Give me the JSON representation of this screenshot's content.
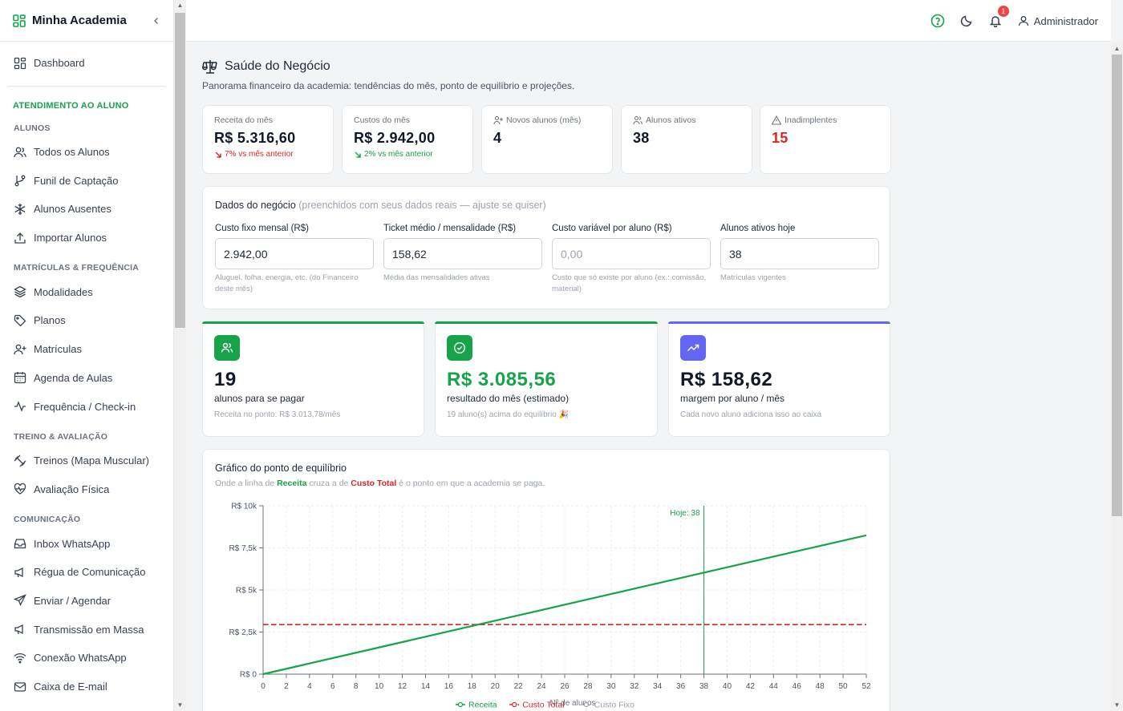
{
  "sidebar": {
    "brand": "Minha Academia",
    "dashboard": "Dashboard",
    "group": "ATENDIMENTO AO ALUNO",
    "sections": [
      {
        "title": "ALUNOS",
        "items": [
          "Todos os Alunos",
          "Funil de Captação",
          "Alunos Ausentes",
          "Importar Alunos"
        ]
      },
      {
        "title": "MATRÍCULAS & FREQUÊNCIA",
        "items": [
          "Modalidades",
          "Planos",
          "Matrículas",
          "Agenda de Aulas",
          "Frequência / Check-in"
        ]
      },
      {
        "title": "TREINO & AVALIAÇÃO",
        "items": [
          "Treinos (Mapa Muscular)",
          "Avaliação Física"
        ]
      },
      {
        "title": "COMUNICAÇÃO",
        "items": [
          "Inbox WhatsApp",
          "Régua de Comunicação",
          "Enviar / Agendar",
          "Transmissão em Massa",
          "Conexão WhatsApp",
          "Caixa de E-mail"
        ]
      }
    ]
  },
  "header": {
    "notifications": "1",
    "user": "Administrador"
  },
  "page": {
    "title": "Saúde do Negócio",
    "subtitle": "Panorama financeiro da academia: tendências do mês, ponto de equilíbrio e projeções."
  },
  "kpis": [
    {
      "label": "Receita do mês",
      "value": "R$ 5.316,60",
      "delta": "7% vs mês anterior"
    },
    {
      "label": "Custos do mês",
      "value": "R$ 2.942,00",
      "delta": "2% vs mês anterior"
    },
    {
      "label": "Novos alunos (mês)",
      "value": "4"
    },
    {
      "label": "Alunos ativos",
      "value": "38"
    },
    {
      "label": "Inadimplentes",
      "value": "15"
    }
  ],
  "business": {
    "title": "Dados do negócio",
    "title_note": "(preenchidos com seus dados reais — ajuste se quiser)",
    "fields": [
      {
        "label": "Custo fixo mensal (R$)",
        "value": "2.942,00",
        "placeholder": "",
        "help": "Aluguel, folha, energia, etc. (do Financeiro deste mês)"
      },
      {
        "label": "Ticket médio / mensalidade (R$)",
        "value": "158,62",
        "placeholder": "",
        "help": "Média das mensalidades ativas"
      },
      {
        "label": "Custo variável por aluno (R$)",
        "value": "",
        "placeholder": "0,00",
        "help": "Custo que só existe por aluno (ex.: comissão, material)"
      },
      {
        "label": "Alunos ativos hoje",
        "value": "38",
        "placeholder": "",
        "help": "Matrículas vigentes"
      }
    ]
  },
  "highlights": [
    {
      "value": "19",
      "caption": "alunos para se pagar",
      "note": "Receita no ponto: R$ 3.013,78/mês",
      "color": "#16a34a"
    },
    {
      "value": "R$ 3.085,56",
      "caption": "resultado do mês (estimado)",
      "note": "19 aluno(s) acima do equilíbrio 🎉",
      "color": "#16a34a"
    },
    {
      "value": "R$ 158,62",
      "caption": "margem por aluno / mês",
      "note": "Cada novo aluno adiciona isso ao caixa",
      "color": "#6366f1"
    }
  ],
  "chart_section": {
    "title": "Gráfico do ponto de equilíbrio",
    "sub_pre": "Onde a linha de ",
    "sub_receita": "Receita",
    "sub_mid": " cruza a de ",
    "sub_custo": "Custo Total",
    "sub_post": " é o ponto em que a academia se paga."
  },
  "chart_data": {
    "type": "line",
    "xlabel": "Nº de alunos",
    "ylabel": "",
    "x": [
      0,
      2,
      4,
      6,
      8,
      10,
      12,
      14,
      16,
      18,
      20,
      22,
      24,
      26,
      28,
      30,
      32,
      34,
      36,
      38,
      40,
      42,
      44,
      46,
      48,
      50,
      52
    ],
    "xlim": [
      0,
      52
    ],
    "ylim": [
      0,
      10000
    ],
    "y_ticks": [
      "R$ 0",
      "R$ 2,5k",
      "R$ 5k",
      "R$ 7,5k",
      "R$ 10k"
    ],
    "series": [
      {
        "name": "Receita",
        "color": "#16a34a",
        "style": "solid",
        "points": [
          [
            0,
            0
          ],
          [
            52,
            8248.24
          ]
        ]
      },
      {
        "name": "Custo Total",
        "color": "#dc2626",
        "style": "dashed",
        "points": [
          [
            0,
            2942
          ],
          [
            52,
            2942
          ]
        ]
      },
      {
        "name": "Custo Fixo",
        "color": "#9ca3af",
        "style": "dotted",
        "points": [
          [
            0,
            2942
          ],
          [
            52,
            2942
          ]
        ]
      }
    ],
    "marker": {
      "x": 38,
      "label": "Hoje: 38",
      "color": "#16a34a"
    },
    "grid": true,
    "legend": "bottom"
  }
}
